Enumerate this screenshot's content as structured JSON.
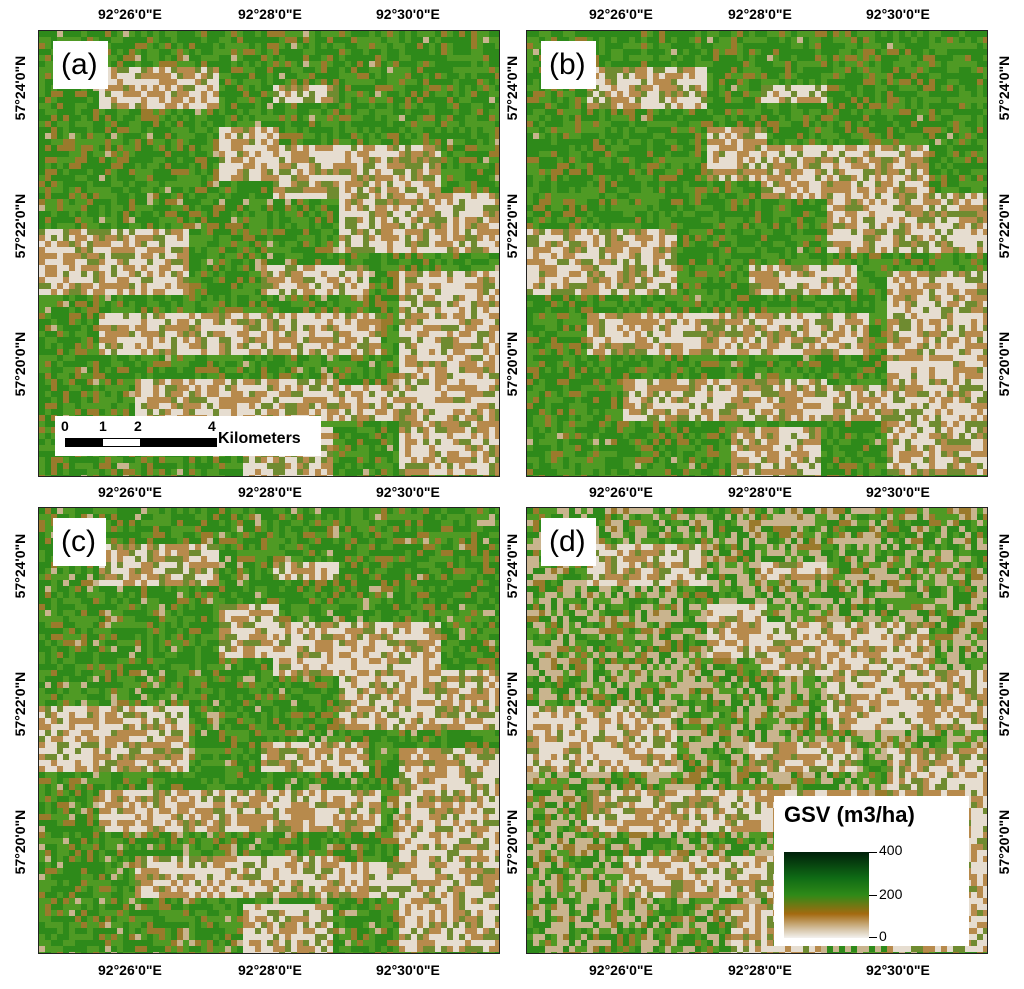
{
  "panels": [
    {
      "label": "(a)",
      "greenness": 0.62
    },
    {
      "label": "(b)",
      "greenness": 0.64
    },
    {
      "label": "(c)",
      "greenness": 0.6
    },
    {
      "label": "(d)",
      "greenness": 0.3
    }
  ],
  "axes": {
    "lon_ticks": [
      "92°26'0\"E",
      "92°28'0\"E",
      "92°30'0\"E"
    ],
    "lat_ticks": [
      "57°24'0\"N",
      "57°22'0\"N",
      "57°20'0\"N"
    ]
  },
  "scale_bar": {
    "ticks": [
      "0",
      "1",
      "2",
      "4"
    ],
    "unit": "Kilometers"
  },
  "legend": {
    "title": "GSV (m3/ha)",
    "max": "400",
    "mid": "200",
    "min": "0",
    "colors": [
      "#00200a",
      "#0f6b15",
      "#2f8a18",
      "#a46a10",
      "#d6c4a6",
      "#f3f1ee"
    ]
  }
}
